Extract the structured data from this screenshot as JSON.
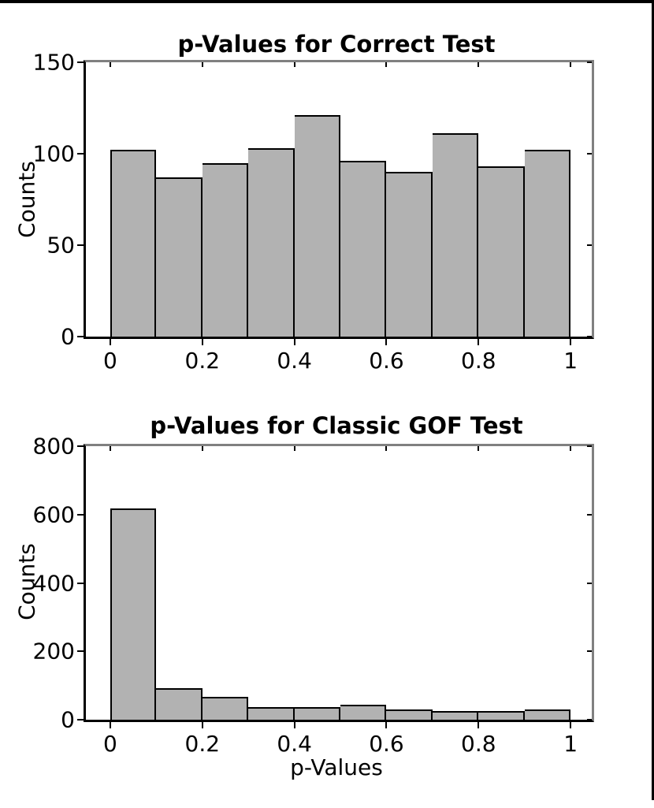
{
  "figure": {
    "background": "#ffffff",
    "frame_color": "#000000",
    "box_edge_color": "#808080",
    "axis_color": "#000000",
    "bar_fill": "#b2b2b2",
    "bar_edge": "#000000"
  },
  "chart_data": [
    {
      "type": "bar",
      "subtype": "histogram",
      "title": "p-Values for Correct Test",
      "xlabel": "",
      "ylabel": "Counts",
      "bin_start": 0,
      "bin_width": 0.1,
      "counts": [
        102,
        87,
        95,
        103,
        121,
        96,
        90,
        111,
        93,
        102
      ],
      "yticks": [
        0,
        50,
        100,
        150
      ],
      "ylim": [
        0,
        150
      ],
      "xticks": [
        0,
        0.2,
        0.4,
        0.6,
        0.8,
        1
      ],
      "xtick_labels": [
        "0",
        "0.2",
        "0.4",
        "0.6",
        "0.8",
        "1"
      ],
      "xlim": [
        -0.053,
        1.046
      ],
      "grid": false,
      "legend": null
    },
    {
      "type": "bar",
      "subtype": "histogram",
      "title": "p-Values for Classic GOF Test",
      "xlabel": "p-Values",
      "ylabel": "Counts",
      "bin_start": 0,
      "bin_width": 0.1,
      "counts": [
        619,
        93,
        68,
        38,
        36,
        43,
        30,
        25,
        25,
        31
      ],
      "yticks": [
        0,
        200,
        400,
        600,
        800
      ],
      "ylim": [
        0,
        800
      ],
      "xticks": [
        0,
        0.2,
        0.4,
        0.6,
        0.8,
        1
      ],
      "xtick_labels": [
        "0",
        "0.2",
        "0.4",
        "0.6",
        "0.8",
        "1"
      ],
      "xlim": [
        -0.053,
        1.046
      ],
      "grid": false,
      "legend": null
    }
  ]
}
